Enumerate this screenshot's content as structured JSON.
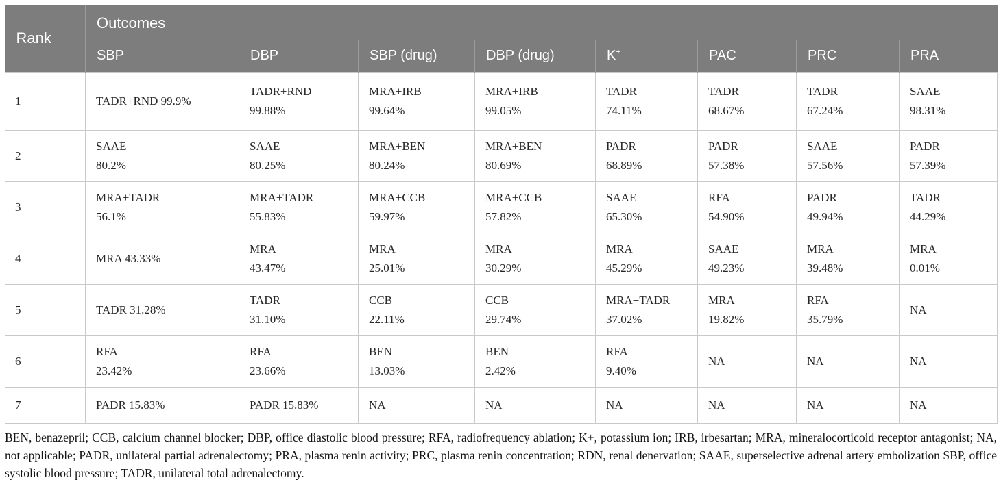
{
  "colors": {
    "header_bg": "#7d7d7d",
    "header_divider": "#9b9b9b",
    "header_text": "#ffffff",
    "body_border": "#c9c9c9",
    "body_text": "#272727",
    "footnote_text": "#141414",
    "page_bg": "#ffffff"
  },
  "table": {
    "rank_header": "Rank",
    "outcomes_header": "Outcomes",
    "columns": [
      {
        "label": "SBP"
      },
      {
        "label": "DBP"
      },
      {
        "label": "SBP (drug)"
      },
      {
        "label": "DBP (drug)"
      },
      {
        "label": "K",
        "sup": "+"
      },
      {
        "label": "PAC"
      },
      {
        "label": "PRC"
      },
      {
        "label": "PRA"
      }
    ],
    "rows": [
      {
        "rank": "1",
        "cells": [
          [
            "TADR+RND 99.9%"
          ],
          [
            "TADR+RND",
            "99.88%"
          ],
          [
            "MRA+IRB",
            "99.64%"
          ],
          [
            "MRA+IRB",
            "99.05%"
          ],
          [
            "TADR",
            "74.11%"
          ],
          [
            "TADR",
            "68.67%"
          ],
          [
            "TADR",
            "67.24%"
          ],
          [
            "SAAE",
            "98.31%"
          ]
        ]
      },
      {
        "rank": "2",
        "cells": [
          [
            "SAAE",
            "80.2%"
          ],
          [
            "SAAE",
            "80.25%"
          ],
          [
            "MRA+BEN",
            "80.24%"
          ],
          [
            "MRA+BEN",
            "80.69%"
          ],
          [
            "PADR",
            "68.89%"
          ],
          [
            "PADR",
            "57.38%"
          ],
          [
            "SAAE",
            "57.56%"
          ],
          [
            "PADR",
            "57.39%"
          ]
        ]
      },
      {
        "rank": "3",
        "cells": [
          [
            "MRA+TADR",
            "56.1%"
          ],
          [
            "MRA+TADR",
            "55.83%"
          ],
          [
            "MRA+CCB",
            "59.97%"
          ],
          [
            "MRA+CCB",
            "57.82%"
          ],
          [
            "SAAE",
            "65.30%"
          ],
          [
            "RFA",
            "54.90%"
          ],
          [
            "PADR",
            "49.94%"
          ],
          [
            "TADR",
            "44.29%"
          ]
        ]
      },
      {
        "rank": "4",
        "cells": [
          [
            "MRA 43.33%"
          ],
          [
            "MRA",
            "43.47%"
          ],
          [
            "MRA",
            "25.01%"
          ],
          [
            "MRA",
            "30.29%"
          ],
          [
            "MRA",
            "45.29%"
          ],
          [
            "SAAE",
            "49.23%"
          ],
          [
            "MRA",
            "39.48%"
          ],
          [
            "MRA",
            "0.01%"
          ]
        ]
      },
      {
        "rank": "5",
        "cells": [
          [
            "TADR 31.28%"
          ],
          [
            "TADR",
            "31.10%"
          ],
          [
            "CCB",
            "22.11%"
          ],
          [
            "CCB",
            "29.74%"
          ],
          [
            "MRA+TADR",
            "37.02%"
          ],
          [
            "MRA",
            "19.82%"
          ],
          [
            "RFA",
            "35.79%"
          ],
          [
            "NA"
          ]
        ]
      },
      {
        "rank": "6",
        "cells": [
          [
            "RFA",
            "23.42%"
          ],
          [
            "RFA",
            "23.66%"
          ],
          [
            "BEN",
            "13.03%"
          ],
          [
            "BEN",
            "2.42%"
          ],
          [
            "RFA",
            "9.40%"
          ],
          [
            "NA"
          ],
          [
            "NA"
          ],
          [
            "NA"
          ]
        ]
      },
      {
        "rank": "7",
        "cells": [
          [
            "PADR 15.83%"
          ],
          [
            "PADR 15.83%"
          ],
          [
            "NA"
          ],
          [
            "NA"
          ],
          [
            "NA"
          ],
          [
            "NA"
          ],
          [
            "NA"
          ],
          [
            "NA"
          ]
        ]
      }
    ]
  },
  "footnote": "BEN, benazepril; CCB, calcium channel blocker; DBP, office diastolic blood pressure; RFA, radiofrequency ablation; K+, potassium ion; IRB, irbesartan; MRA, mineralocorticoid receptor antagonist; NA, not applicable; PADR, unilateral partial adrenalectomy; PRA, plasma renin activity; PRC, plasma renin concentration; RDN, renal denervation; SAAE, superselective adrenal artery embolization SBP, office systolic blood pressure; TADR, unilateral total adrenalectomy."
}
